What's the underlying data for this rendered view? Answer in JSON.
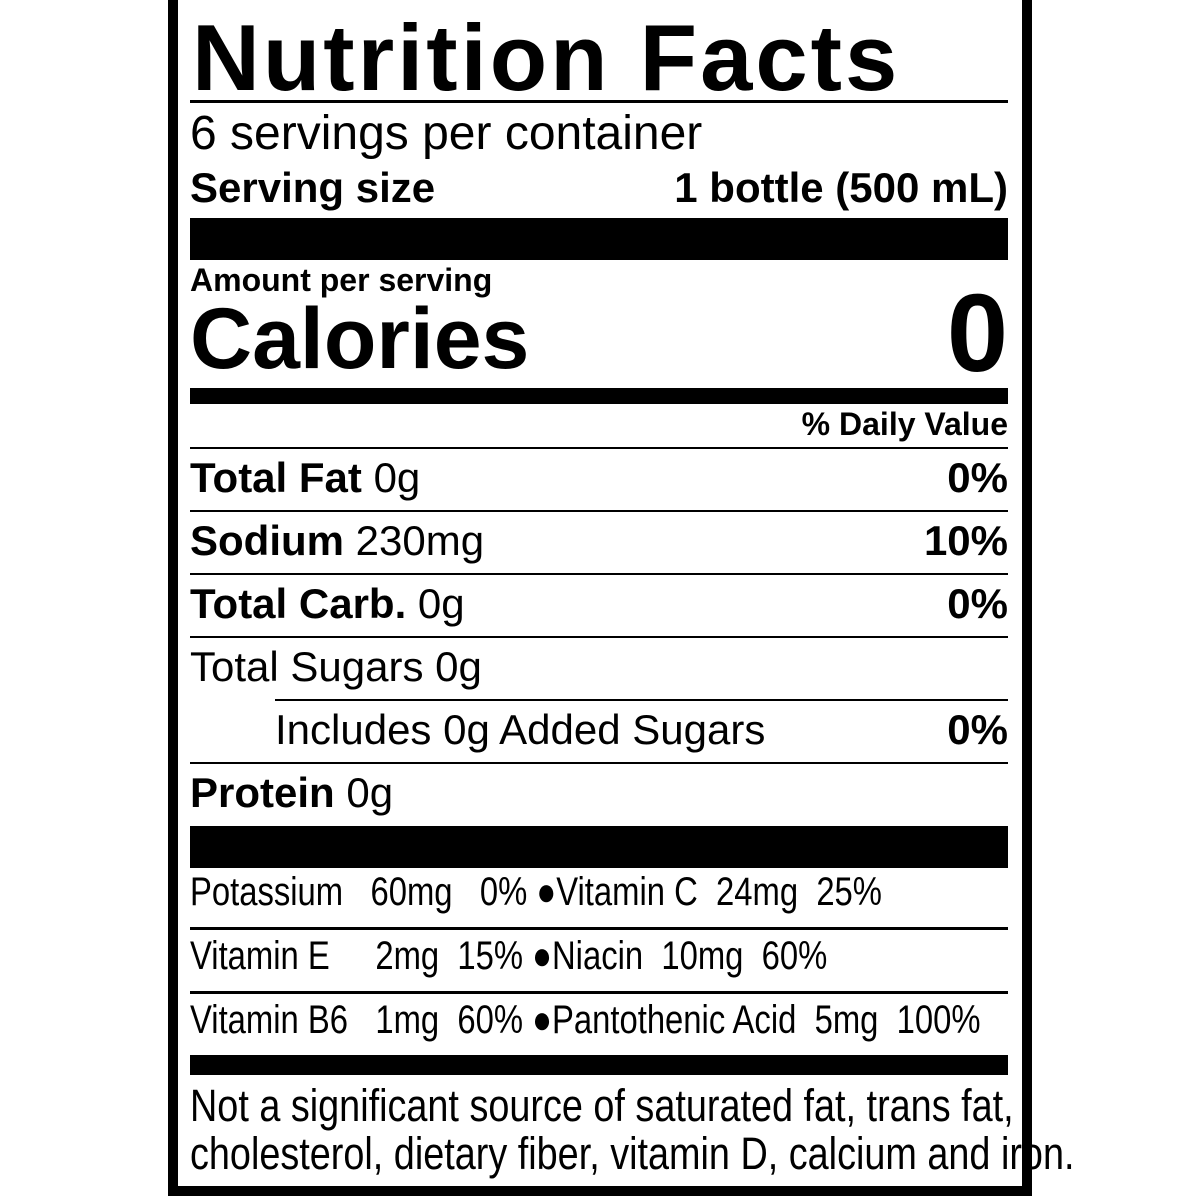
{
  "title": "Nutrition Facts",
  "servings_per_container": "6 servings per container",
  "serving_size": {
    "label": "Serving size",
    "value": "1 bottle (500 mL)"
  },
  "amount_per_serving": "Amount per serving",
  "calories": {
    "label": "Calories",
    "value": "0"
  },
  "daily_value_header": "% Daily Value",
  "nutrients": [
    {
      "label": "Total Fat",
      "amount": "0g",
      "dv": "0%"
    },
    {
      "label": "Sodium",
      "amount": "230mg",
      "dv": "10%"
    },
    {
      "label": "Total Carb.",
      "amount": "0g",
      "dv": "0%"
    },
    {
      "label": "Total Sugars 0g"
    },
    {
      "label": "Includes 0g Added Sugars",
      "dv": "0%"
    },
    {
      "label": "Protein",
      "amount": "0g"
    }
  ],
  "vitamins": [
    [
      {
        "name": "Potassium",
        "amount": "60mg",
        "dv": "0%"
      },
      {
        "name": "Vitamin C",
        "amount": "24mg",
        "dv": "25%"
      }
    ],
    [
      {
        "name": "Vitamin E",
        "amount": "2mg",
        "dv": "15%"
      },
      {
        "name": "Niacin",
        "amount": "10mg",
        "dv": "60%"
      }
    ],
    [
      {
        "name": "Vitamin B6",
        "amount": "1mg",
        "dv": "60%"
      },
      {
        "name": "Pantothenic Acid",
        "amount": "5mg",
        "dv": "100%"
      }
    ]
  ],
  "footnote_line1": "Not a significant source of saturated fat, trans fat,",
  "footnote_line2": "cholesterol, dietary fiber, vitamin D, calcium and iron."
}
